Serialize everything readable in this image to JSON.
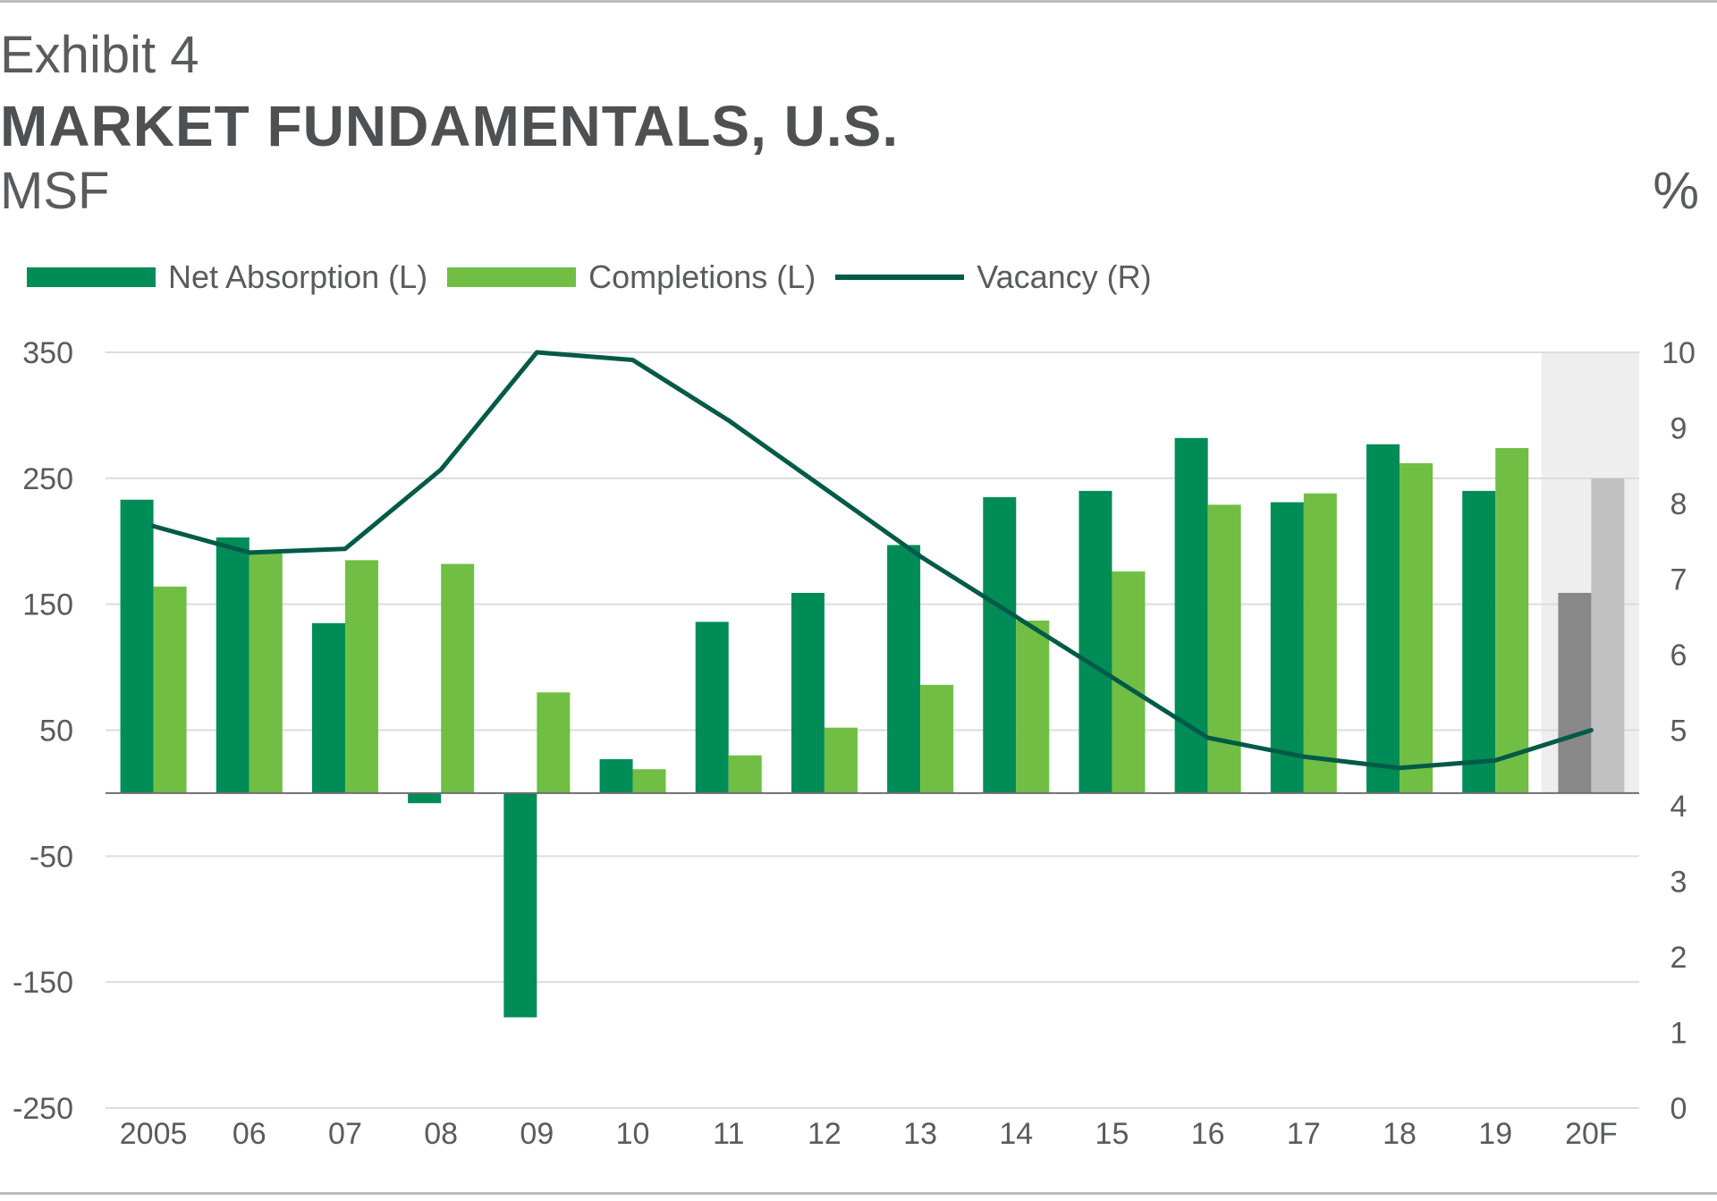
{
  "header": {
    "exhibit": "Exhibit 4",
    "title": "MARKET FUNDAMENTALS, U.S.",
    "left_unit": "MSF",
    "right_unit": "%"
  },
  "legend": [
    {
      "label": "Net Absorption (L)",
      "color": "#008c57",
      "kind": "bar"
    },
    {
      "label": "Completions (L)",
      "color": "#70bf44",
      "kind": "bar"
    },
    {
      "label": "Vacancy (R)",
      "color": "#005a48",
      "kind": "line"
    }
  ],
  "chart_data": {
    "type": "bar",
    "title": "MARKET FUNDAMENTALS, U.S.",
    "categories": [
      "2005",
      "06",
      "07",
      "08",
      "09",
      "10",
      "11",
      "12",
      "13",
      "14",
      "15",
      "16",
      "17",
      "18",
      "19",
      "20F"
    ],
    "series": [
      {
        "name": "Net Absorption (L)",
        "axis": "left",
        "type": "bar",
        "values": [
          233,
          203,
          135,
          -8,
          -178,
          27,
          136,
          159,
          197,
          235,
          240,
          282,
          231,
          277,
          240,
          159
        ]
      },
      {
        "name": "Completions (L)",
        "axis": "left",
        "type": "bar",
        "values": [
          164,
          192,
          185,
          182,
          80,
          19,
          30,
          52,
          86,
          137,
          176,
          229,
          238,
          262,
          274,
          250
        ]
      },
      {
        "name": "Vacancy (R)",
        "axis": "right",
        "type": "line",
        "values": [
          7.7,
          7.35,
          7.4,
          8.45,
          10.0,
          9.9,
          9.1,
          8.2,
          7.3,
          6.5,
          5.7,
          4.9,
          4.65,
          4.5,
          4.6,
          5.0
        ]
      }
    ],
    "forecast_category": "20F",
    "forecast_colors": {
      "net_absorption": "#888888",
      "completions": "#c1c1c1",
      "shade": "#eeeeee"
    },
    "left_axis": {
      "label": "MSF",
      "ylim": [
        -250,
        350
      ],
      "ticks": [
        "350",
        "250",
        "150",
        "50",
        "-50",
        "-150",
        "-250"
      ],
      "tick_values": [
        350,
        250,
        150,
        50,
        -50,
        -150,
        -250
      ]
    },
    "right_axis": {
      "label": "%",
      "ylim": [
        0,
        10
      ],
      "ticks": [
        "10",
        "9",
        "8",
        "7",
        "6",
        "5",
        "4",
        "3",
        "2",
        "1",
        "0"
      ],
      "tick_values": [
        10,
        9,
        8,
        7,
        6,
        5,
        4,
        3,
        2,
        1,
        0
      ]
    },
    "grid": true,
    "colors": {
      "net_absorption": "#008c57",
      "completions": "#70bf44",
      "vacancy": "#005a48",
      "grid": "#dcdcdc",
      "zero_line": "#6e6e6e"
    }
  }
}
